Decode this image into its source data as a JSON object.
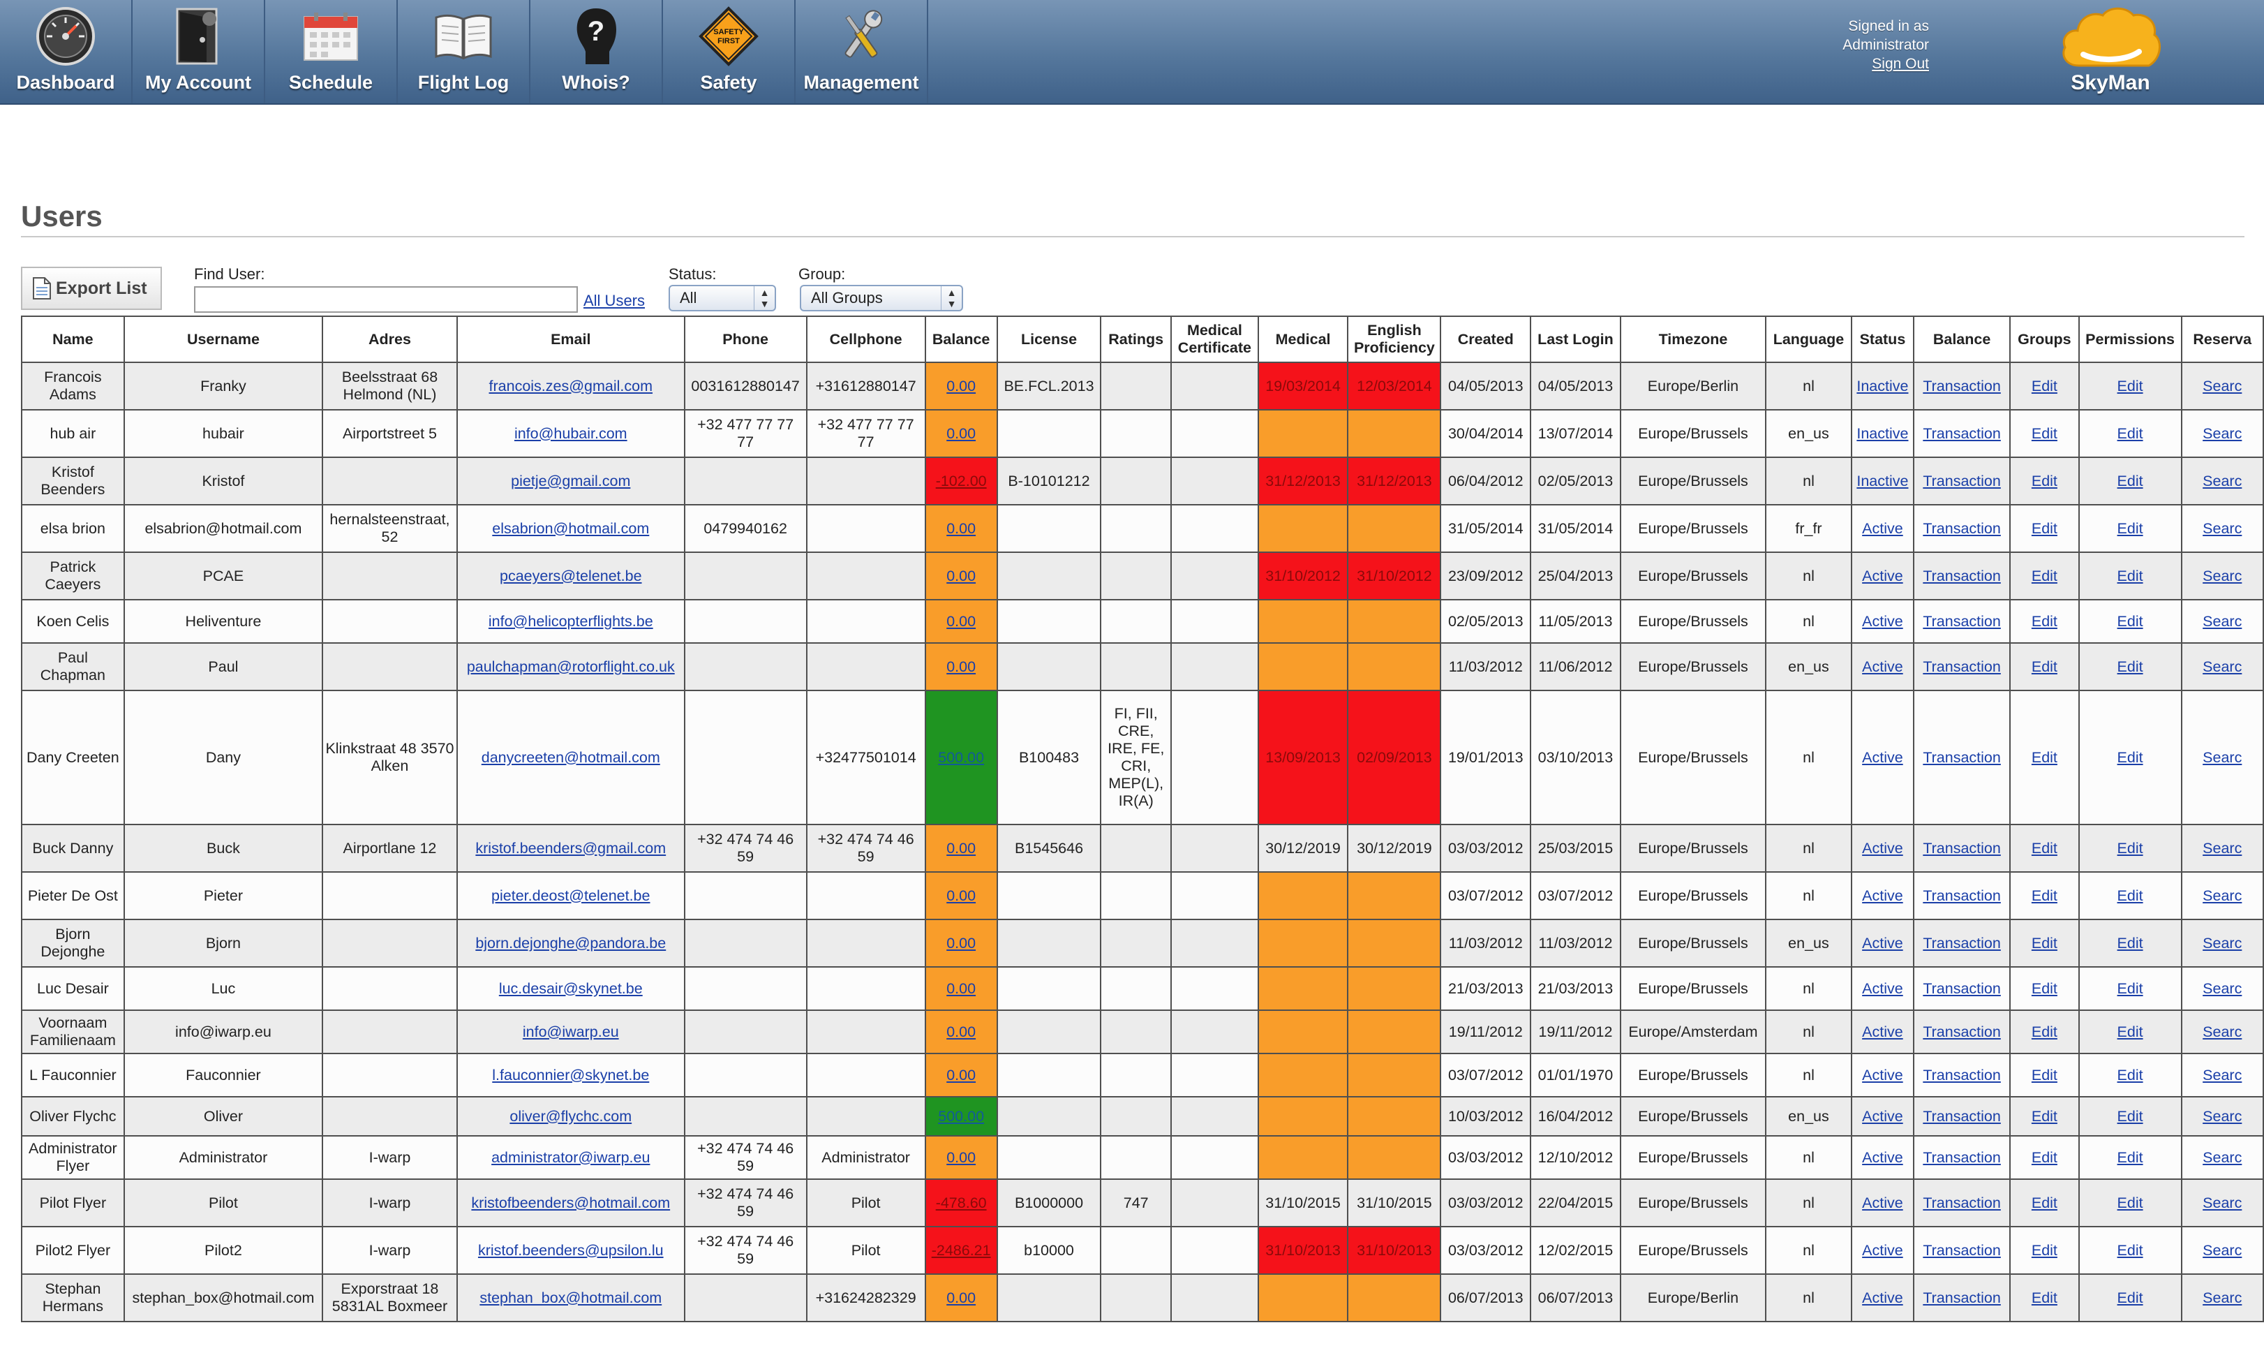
{
  "nav": {
    "items": [
      {
        "label": "Dashboard",
        "icon": "dashboard-gauge-icon"
      },
      {
        "label": "My Account",
        "icon": "account-door-icon"
      },
      {
        "label": "Schedule",
        "icon": "calendar-icon"
      },
      {
        "label": "Flight Log",
        "icon": "book-icon"
      },
      {
        "label": "Whois?",
        "icon": "question-head-icon"
      },
      {
        "label": "Safety",
        "icon": "safety-first-sign-icon",
        "sign_text": "SAFETY FIRST"
      },
      {
        "label": "Management",
        "icon": "tools-icon"
      }
    ]
  },
  "session": {
    "signed_in_as": "Signed in as",
    "user": "Administrator",
    "sign_out": "Sign Out"
  },
  "brand": {
    "name": "SkyMan",
    "logo_color": "#f7b21c"
  },
  "page": {
    "title": "Users"
  },
  "filters": {
    "export_label": "Export List",
    "find_label": "Find User:",
    "find_value": "",
    "all_users": "All Users",
    "status_label": "Status:",
    "status_value": "All",
    "group_label": "Group:",
    "group_value": "All Groups"
  },
  "colors": {
    "ok": "#1f9421",
    "warning": "#f99d2a",
    "expired": "#f5121a"
  },
  "table": {
    "headers": [
      "Name",
      "Username",
      "Adres",
      "Email",
      "Phone",
      "Cellphone",
      "Balance",
      "License",
      "Ratings",
      "Medical Certificate",
      "Medical",
      "English Proficiency",
      "Created",
      "Last Login",
      "Timezone",
      "Language",
      "Status",
      "Balance",
      "Groups",
      "Permissions",
      "Reserva"
    ],
    "rows": [
      {
        "name": "Francois Adams",
        "username": "Franky",
        "adres": "Beelsstraat 68 Helmond (NL)",
        "email": "francois.zes@gmail.com",
        "phone": "0031612880147",
        "cellphone": "+31612880147",
        "balance": "0.00",
        "balance_status": "orange",
        "license": "BE.FCL.2013",
        "ratings": "",
        "medcert": "",
        "medical": "19/03/2014",
        "medical_status": "red",
        "english": "12/03/2014",
        "english_status": "red",
        "created": "04/05/2013",
        "last_login": "04/05/2013",
        "timezone": "Europe/Berlin",
        "language": "nl",
        "status": "Inactive",
        "transaction": "Transaction",
        "groups": "Edit",
        "permissions": "Edit",
        "reserva": "Searc"
      },
      {
        "name": "hub air",
        "username": "hubair",
        "adres": "Airportstreet 5",
        "email": "info@hubair.com",
        "phone": "+32 477 77 77 77",
        "cellphone": "+32 477 77 77 77",
        "balance": "0.00",
        "balance_status": "orange",
        "license": "",
        "ratings": "",
        "medcert": "",
        "medical": "",
        "medical_status": "orange",
        "english": "",
        "english_status": "orange",
        "created": "30/04/2014",
        "last_login": "13/07/2014",
        "timezone": "Europe/Brussels",
        "language": "en_us",
        "status": "Inactive",
        "transaction": "Transaction",
        "groups": "Edit",
        "permissions": "Edit",
        "reserva": "Searc"
      },
      {
        "name": "Kristof Beenders",
        "username": "Kristof",
        "adres": "",
        "email": "pietje@gmail.com",
        "phone": "",
        "cellphone": "",
        "balance": "-102.00",
        "balance_status": "red",
        "license": "B-10101212",
        "ratings": "",
        "medcert": "",
        "medical": "31/12/2013",
        "medical_status": "red",
        "english": "31/12/2013",
        "english_status": "red",
        "created": "06/04/2012",
        "last_login": "02/05/2013",
        "timezone": "Europe/Brussels",
        "language": "nl",
        "status": "Inactive",
        "transaction": "Transaction",
        "groups": "Edit",
        "permissions": "Edit",
        "reserva": "Searc"
      },
      {
        "name": "elsa brion",
        "username": "elsabrion@hotmail.com",
        "adres": "hernalsteenstraat, 52",
        "email": "elsabrion@hotmail.com",
        "phone": "0479940162",
        "cellphone": "",
        "balance": "0.00",
        "balance_status": "orange",
        "license": "",
        "ratings": "",
        "medcert": "",
        "medical": "",
        "medical_status": "orange",
        "english": "",
        "english_status": "orange",
        "created": "31/05/2014",
        "last_login": "31/05/2014",
        "timezone": "Europe/Brussels",
        "language": "fr_fr",
        "status": "Active",
        "transaction": "Transaction",
        "groups": "Edit",
        "permissions": "Edit",
        "reserva": "Searc"
      },
      {
        "name": "Patrick Caeyers",
        "username": "PCAE",
        "adres": "",
        "email": "pcaeyers@telenet.be",
        "phone": "",
        "cellphone": "",
        "balance": "0.00",
        "balance_status": "orange",
        "license": "",
        "ratings": "",
        "medcert": "",
        "medical": "31/10/2012",
        "medical_status": "red",
        "english": "31/10/2012",
        "english_status": "red",
        "created": "23/09/2012",
        "last_login": "25/04/2013",
        "timezone": "Europe/Brussels",
        "language": "nl",
        "status": "Active",
        "transaction": "Transaction",
        "groups": "Edit",
        "permissions": "Edit",
        "reserva": "Searc"
      },
      {
        "name": "Koen Celis",
        "username": "Heliventure",
        "adres": "",
        "email": "info@helicopterflights.be",
        "phone": "",
        "cellphone": "",
        "balance": "0.00",
        "balance_status": "orange",
        "license": "",
        "ratings": "",
        "medcert": "",
        "medical": "",
        "medical_status": "orange",
        "english": "",
        "english_status": "orange",
        "created": "02/05/2013",
        "last_login": "11/05/2013",
        "timezone": "Europe/Brussels",
        "language": "nl",
        "status": "Active",
        "transaction": "Transaction",
        "groups": "Edit",
        "permissions": "Edit",
        "reserva": "Searc"
      },
      {
        "name": "Paul Chapman",
        "username": "Paul",
        "adres": "",
        "email": "paulchapman@rotorflight.co.uk",
        "phone": "",
        "cellphone": "",
        "balance": "0.00",
        "balance_status": "orange",
        "license": "",
        "ratings": "",
        "medcert": "",
        "medical": "",
        "medical_status": "orange",
        "english": "",
        "english_status": "orange",
        "created": "11/03/2012",
        "last_login": "11/06/2012",
        "timezone": "Europe/Brussels",
        "language": "en_us",
        "status": "Active",
        "transaction": "Transaction",
        "groups": "Edit",
        "permissions": "Edit",
        "reserva": "Searc"
      },
      {
        "name": "Dany Creeten",
        "username": "Dany",
        "adres": "Klinkstraat 48 3570 Alken",
        "email": "danycreeten@hotmail.com",
        "phone": "",
        "cellphone": "+32477501014",
        "balance": "500.00",
        "balance_status": "green",
        "license": "B100483",
        "ratings": "FI, FII, CRE, IRE, FE, CRI, MEP(L), IR(A)",
        "medcert": "",
        "medical": "13/09/2013",
        "medical_status": "red",
        "english": "02/09/2013",
        "english_status": "red",
        "created": "19/01/2013",
        "last_login": "03/10/2013",
        "timezone": "Europe/Brussels",
        "language": "nl",
        "status": "Active",
        "transaction": "Transaction",
        "groups": "Edit",
        "permissions": "Edit",
        "reserva": "Searc"
      },
      {
        "name": "Buck Danny",
        "username": "Buck",
        "adres": "Airportlane 12",
        "email": "kristof.beenders@gmail.com",
        "phone": "+32 474 74 46 59",
        "cellphone": "+32 474 74 46 59",
        "balance": "0.00",
        "balance_status": "orange",
        "license": "B1545646",
        "ratings": "",
        "medcert": "",
        "medical": "30/12/2019",
        "medical_status": "",
        "english": "30/12/2019",
        "english_status": "",
        "created": "03/03/2012",
        "last_login": "25/03/2015",
        "timezone": "Europe/Brussels",
        "language": "nl",
        "status": "Active",
        "transaction": "Transaction",
        "groups": "Edit",
        "permissions": "Edit",
        "reserva": "Searc"
      },
      {
        "name": "Pieter De Ost",
        "username": "Pieter",
        "adres": "",
        "email": "pieter.deost@telenet.be",
        "phone": "",
        "cellphone": "",
        "balance": "0.00",
        "balance_status": "orange",
        "license": "",
        "ratings": "",
        "medcert": "",
        "medical": "",
        "medical_status": "orange",
        "english": "",
        "english_status": "orange",
        "created": "03/07/2012",
        "last_login": "03/07/2012",
        "timezone": "Europe/Brussels",
        "language": "nl",
        "status": "Active",
        "transaction": "Transaction",
        "groups": "Edit",
        "permissions": "Edit",
        "reserva": "Searc"
      },
      {
        "name": "Bjorn Dejonghe",
        "username": "Bjorn",
        "adres": "",
        "email": "bjorn.dejonghe@pandora.be",
        "phone": "",
        "cellphone": "",
        "balance": "0.00",
        "balance_status": "orange",
        "license": "",
        "ratings": "",
        "medcert": "",
        "medical": "",
        "medical_status": "orange",
        "english": "",
        "english_status": "orange",
        "created": "11/03/2012",
        "last_login": "11/03/2012",
        "timezone": "Europe/Brussels",
        "language": "en_us",
        "status": "Active",
        "transaction": "Transaction",
        "groups": "Edit",
        "permissions": "Edit",
        "reserva": "Searc"
      },
      {
        "name": "Luc Desair",
        "username": "Luc",
        "adres": "",
        "email": "luc.desair@skynet.be",
        "phone": "",
        "cellphone": "",
        "balance": "0.00",
        "balance_status": "orange",
        "license": "",
        "ratings": "",
        "medcert": "",
        "medical": "",
        "medical_status": "orange",
        "english": "",
        "english_status": "orange",
        "created": "21/03/2013",
        "last_login": "21/03/2013",
        "timezone": "Europe/Brussels",
        "language": "nl",
        "status": "Active",
        "transaction": "Transaction",
        "groups": "Edit",
        "permissions": "Edit",
        "reserva": "Searc"
      },
      {
        "name": "Voornaam Familienaam",
        "username": "info@iwarp.eu",
        "adres": "",
        "email": "info@iwarp.eu",
        "phone": "",
        "cellphone": "",
        "balance": "0.00",
        "balance_status": "orange",
        "license": "",
        "ratings": "",
        "medcert": "",
        "medical": "",
        "medical_status": "orange",
        "english": "",
        "english_status": "orange",
        "created": "19/11/2012",
        "last_login": "19/11/2012",
        "timezone": "Europe/Amsterdam",
        "language": "nl",
        "status": "Active",
        "transaction": "Transaction",
        "groups": "Edit",
        "permissions": "Edit",
        "reserva": "Searc"
      },
      {
        "name": "L Fauconnier",
        "username": "Fauconnier",
        "adres": "",
        "email": "l.fauconnier@skynet.be",
        "phone": "",
        "cellphone": "",
        "balance": "0.00",
        "balance_status": "orange",
        "license": "",
        "ratings": "",
        "medcert": "",
        "medical": "",
        "medical_status": "orange",
        "english": "",
        "english_status": "orange",
        "created": "03/07/2012",
        "last_login": "01/01/1970",
        "timezone": "Europe/Brussels",
        "language": "nl",
        "status": "Active",
        "transaction": "Transaction",
        "groups": "Edit",
        "permissions": "Edit",
        "reserva": "Searc"
      },
      {
        "name": "Oliver Flychc",
        "username": "Oliver",
        "adres": "",
        "email": "oliver@flychc.com",
        "phone": "",
        "cellphone": "",
        "balance": "500.00",
        "balance_status": "green",
        "license": "",
        "ratings": "",
        "medcert": "",
        "medical": "",
        "medical_status": "orange",
        "english": "",
        "english_status": "orange",
        "created": "10/03/2012",
        "last_login": "16/04/2012",
        "timezone": "Europe/Brussels",
        "language": "en_us",
        "status": "Active",
        "transaction": "Transaction",
        "groups": "Edit",
        "permissions": "Edit",
        "reserva": "Searc"
      },
      {
        "name": "Administrator Flyer",
        "username": "Administrator",
        "adres": "I-warp",
        "email": "administrator@iwarp.eu",
        "phone": "+32 474 74 46 59",
        "cellphone": "Administrator",
        "balance": "0.00",
        "balance_status": "orange",
        "license": "",
        "ratings": "",
        "medcert": "",
        "medical": "",
        "medical_status": "orange",
        "english": "",
        "english_status": "orange",
        "created": "03/03/2012",
        "last_login": "12/10/2012",
        "timezone": "Europe/Brussels",
        "language": "nl",
        "status": "Active",
        "transaction": "Transaction",
        "groups": "Edit",
        "permissions": "Edit",
        "reserva": "Searc"
      },
      {
        "name": "Pilot Flyer",
        "username": "Pilot",
        "adres": "I-warp",
        "email": "kristofbeenders@hotmail.com",
        "phone": "+32 474 74 46 59",
        "cellphone": "Pilot",
        "balance": "-478.60",
        "balance_status": "red",
        "license": "B1000000",
        "ratings": "747",
        "medcert": "",
        "medical": "31/10/2015",
        "medical_status": "",
        "english": "31/10/2015",
        "english_status": "",
        "created": "03/03/2012",
        "last_login": "22/04/2015",
        "timezone": "Europe/Brussels",
        "language": "nl",
        "status": "Active",
        "transaction": "Transaction",
        "groups": "Edit",
        "permissions": "Edit",
        "reserva": "Searc"
      },
      {
        "name": "Pilot2 Flyer",
        "username": "Pilot2",
        "adres": "I-warp",
        "email": "kristof.beenders@upsilon.lu",
        "phone": "+32 474 74 46 59",
        "cellphone": "Pilot",
        "balance": "-2486.21",
        "balance_status": "red",
        "license": "b10000",
        "ratings": "",
        "medcert": "",
        "medical": "31/10/2013",
        "medical_status": "red",
        "english": "31/10/2013",
        "english_status": "red",
        "created": "03/03/2012",
        "last_login": "12/02/2015",
        "timezone": "Europe/Brussels",
        "language": "nl",
        "status": "Active",
        "transaction": "Transaction",
        "groups": "Edit",
        "permissions": "Edit",
        "reserva": "Searc"
      },
      {
        "name": "Stephan Hermans",
        "username": "stephan_box@hotmail.com",
        "adres": "Exporstraat 18 5831AL Boxmeer",
        "email": "stephan_box@hotmail.com",
        "phone": "",
        "cellphone": "+31624282329",
        "balance": "0.00",
        "balance_status": "orange",
        "license": "",
        "ratings": "",
        "medcert": "",
        "medical": "",
        "medical_status": "orange",
        "english": "",
        "english_status": "orange",
        "created": "06/07/2013",
        "last_login": "06/07/2013",
        "timezone": "Europe/Berlin",
        "language": "nl",
        "status": "Active",
        "transaction": "Transaction",
        "groups": "Edit",
        "permissions": "Edit",
        "reserva": "Searc"
      }
    ]
  }
}
